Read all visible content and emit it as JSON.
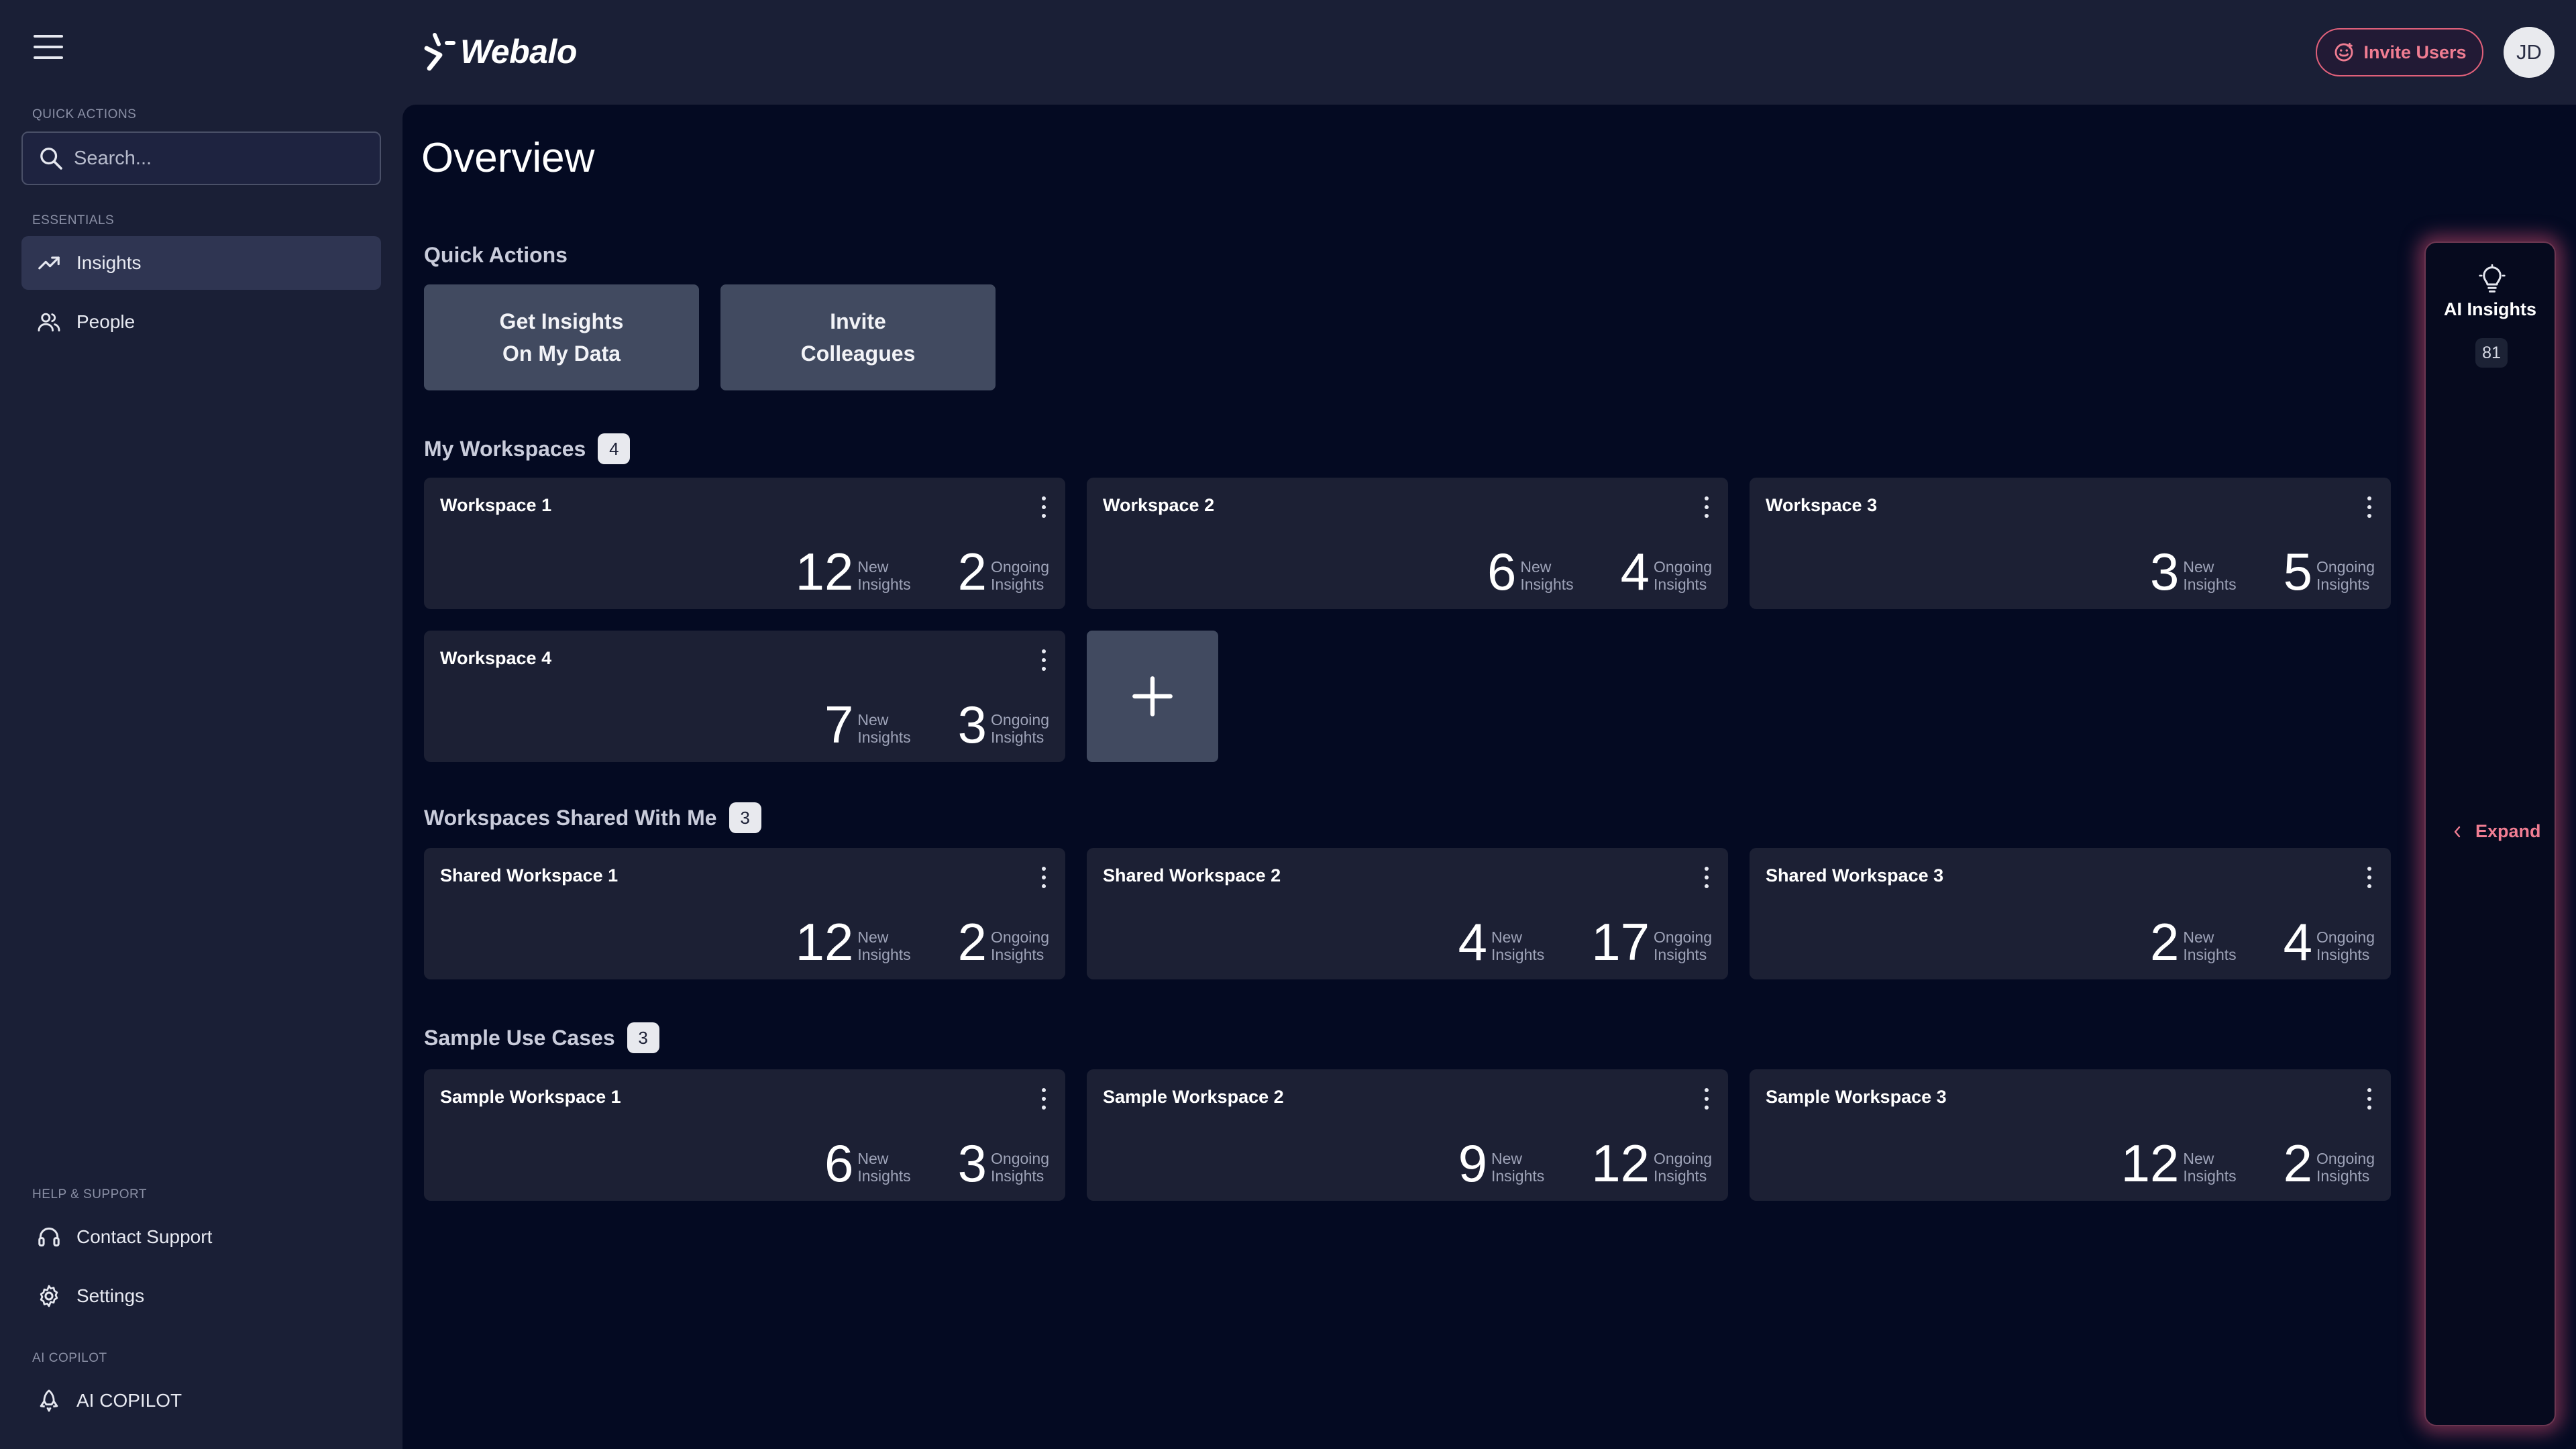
{
  "app": {
    "name": "Webalo"
  },
  "sidebar": {
    "quick_actions_label": "QUICK ACTIONS",
    "search_placeholder": "Search...",
    "essentials_label": "ESSENTIALS",
    "items": [
      {
        "label": "Insights",
        "icon": "trending-up-icon",
        "active": true
      },
      {
        "label": "People",
        "icon": "people-icon",
        "active": false
      }
    ],
    "help_label": "HELP & SUPPORT",
    "help_items": [
      {
        "label": "Contact Support",
        "icon": "headset-icon"
      },
      {
        "label": "Settings",
        "icon": "gear-icon"
      }
    ],
    "copilot_label": "AI COPILOT",
    "copilot_item": {
      "label": "AI COPILOT",
      "icon": "rocket-icon"
    }
  },
  "header": {
    "invite_users_label": "Invite Users",
    "avatar_initials": "JD"
  },
  "main": {
    "title": "Overview",
    "quick_actions": {
      "heading": "Quick Actions",
      "buttons": [
        "Get Insights\nOn My Data",
        "Invite\nColleagues"
      ]
    },
    "stat_labels": {
      "new": [
        "New",
        "Insights"
      ],
      "ongoing": [
        "Ongoing",
        "Insights"
      ]
    },
    "my_workspaces": {
      "heading": "My Workspaces",
      "count": "4",
      "cards": [
        {
          "title": "Workspace 1",
          "new": "12",
          "ongoing": "2"
        },
        {
          "title": "Workspace 2",
          "new": "6",
          "ongoing": "4"
        },
        {
          "title": "Workspace 3",
          "new": "3",
          "ongoing": "5"
        },
        {
          "title": "Workspace 4",
          "new": "7",
          "ongoing": "3"
        }
      ]
    },
    "shared_workspaces": {
      "heading": "Workspaces Shared With Me",
      "count": "3",
      "cards": [
        {
          "title": "Shared Workspace 1",
          "new": "12",
          "ongoing": "2"
        },
        {
          "title": "Shared Workspace 2",
          "new": "4",
          "ongoing": "17"
        },
        {
          "title": "Shared Workspace 3",
          "new": "2",
          "ongoing": "4"
        }
      ]
    },
    "sample_use_cases": {
      "heading": "Sample Use Cases",
      "count": "3",
      "cards": [
        {
          "title": "Sample Workspace 1",
          "new": "6",
          "ongoing": "3"
        },
        {
          "title": "Sample Workspace 2",
          "new": "9",
          "ongoing": "12"
        },
        {
          "title": "Sample Workspace 3",
          "new": "12",
          "ongoing": "2"
        }
      ]
    }
  },
  "ai_panel": {
    "title": "AI Insights",
    "count": "81",
    "expand_label": "Expand"
  },
  "colors": {
    "sidebar_bg": "#1a1f36",
    "main_bg": "#040a22",
    "card_bg": "#1c2034",
    "button_bg": "#414a60",
    "accent_pink": "#f07d92"
  }
}
